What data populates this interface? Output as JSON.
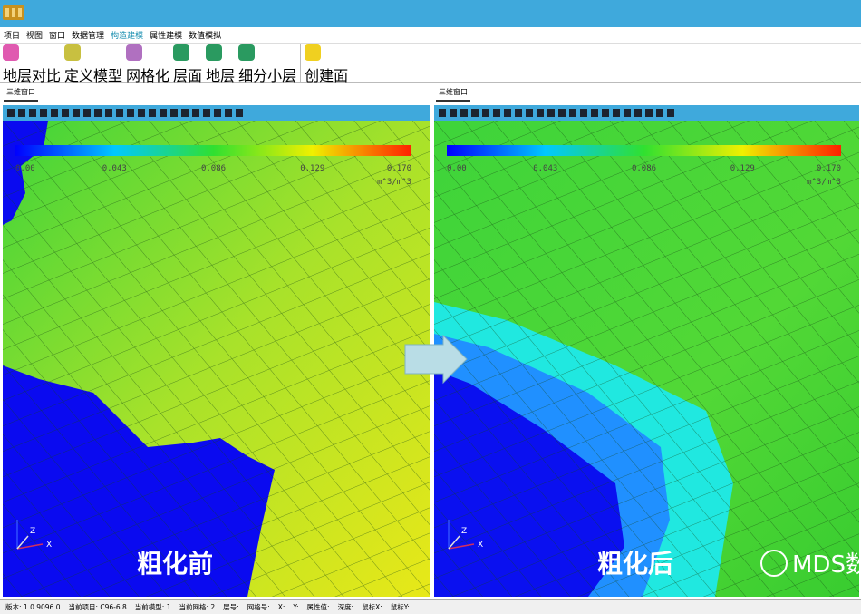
{
  "menu": [
    "项目",
    "视图",
    "窗口",
    "数据管理",
    "构造建模",
    "属性建模",
    "数值模拟"
  ],
  "toolbar": [
    "地层对比",
    "定义模型",
    "网格化",
    "层面",
    "地层",
    "细分小层",
    "创建面"
  ],
  "tabs": [
    "三维窗口",
    "三维窗口"
  ],
  "left_view": {
    "colorbar_ticks": [
      "0.00",
      "0.043",
      "0.086",
      "0.129",
      "0.170"
    ],
    "unit": "m^3/m^3",
    "axis_labels": [
      "Z",
      "X"
    ],
    "caption": "粗化前"
  },
  "right_view": {
    "colorbar_ticks": [
      "0.00",
      "0.043",
      "0.086",
      "0.129",
      "0.170"
    ],
    "unit": "m^3/m^3",
    "axis_labels": [
      "Z",
      "X"
    ],
    "caption": "粗化后",
    "watermark": "MDS数"
  },
  "status_bar": [
    "版本: 1.0.9096.0",
    "当前项目: C96-6.8",
    "当前模型: 1",
    "当前网格: 2",
    "层号:",
    "网格号:",
    "X:",
    "Y:",
    "属性值:",
    "深度:",
    "鼠标X:",
    "鼠标Y:"
  ]
}
